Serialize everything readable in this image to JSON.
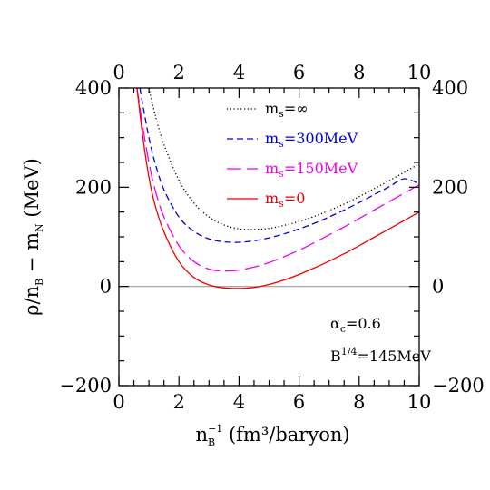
{
  "chart_data": {
    "type": "line",
    "xlabel": "n_B^-1 (fm³/baryon)",
    "ylabel": "ρ/n_B − m_N (MeV)",
    "xlim": [
      0,
      10
    ],
    "ylim": [
      -200,
      400
    ],
    "x_ticks": [
      0,
      2,
      4,
      6,
      8,
      10
    ],
    "y_ticks": [
      -200,
      0,
      200,
      400
    ],
    "x_tick_labels": [
      "0",
      "2",
      "4",
      "6",
      "8",
      "10"
    ],
    "y_tick_labels": [
      "−200",
      "0",
      "200",
      "400"
    ],
    "mirror_axes": "top-and-right",
    "grid": false,
    "legend_placement": "top-center",
    "reference_line": {
      "y": 0,
      "color": "#999999"
    },
    "series": [
      {
        "name": "m_s=∞",
        "name_parts": {
          "base": "m",
          "sub": "s",
          "rest": "=∞"
        },
        "color": "#000000",
        "dash": "dotted",
        "x": [
          1.0,
          1.2,
          1.5,
          2.0,
          2.5,
          3.0,
          3.5,
          4.0,
          4.5,
          5.0,
          5.5,
          6.0,
          6.5,
          7.0,
          7.5,
          8.0,
          8.5,
          9.0,
          9.5,
          10.0
        ],
        "y": [
          400,
          348,
          286,
          214,
          168,
          140,
          124,
          116,
          115,
          117,
          123,
          131,
          141,
          153,
          166,
          181,
          197,
          213,
          230,
          247
        ]
      },
      {
        "name": "m_s=300MeV",
        "name_parts": {
          "base": "m",
          "sub": "s",
          "rest": "=300MeV"
        },
        "color": "#0000dd",
        "dash": "dashed",
        "x": [
          0.7,
          0.8,
          1.0,
          1.2,
          1.5,
          2.0,
          2.5,
          3.0,
          3.5,
          4.0,
          4.5,
          5.0,
          5.5,
          6.0,
          6.5,
          7.0,
          7.5,
          8.0,
          8.5,
          9.0,
          9.5,
          10.0
        ],
        "y": [
          400,
          365,
          300,
          250,
          195,
          140,
          111,
          96,
          90,
          89,
          92,
          98,
          106,
          116,
          127,
          140,
          154,
          169,
          185,
          201,
          217,
          207
        ]
      },
      {
        "name": "m_s=150MeV",
        "name_parts": {
          "base": "m",
          "sub": "s",
          "rest": "=150MeV"
        },
        "color": "#ee00ee",
        "dash": "longdash",
        "x": [
          0.6,
          0.8,
          1.0,
          1.2,
          1.5,
          2.0,
          2.5,
          3.0,
          3.5,
          4.0,
          4.5,
          5.0,
          5.5,
          6.0,
          6.5,
          7.0,
          7.5,
          8.0,
          8.5,
          9.0,
          9.5,
          10.0
        ],
        "y": [
          400,
          320,
          250,
          196,
          140,
          82,
          50,
          35,
          31,
          33,
          39,
          48,
          60,
          73,
          88,
          104,
          120,
          137,
          154,
          171,
          188,
          205
        ]
      },
      {
        "name": "m_s=0",
        "name_parts": {
          "base": "m",
          "sub": "s",
          "rest": "=0"
        },
        "color": "#ee0000",
        "dash": "solid",
        "x": [
          0.6,
          0.8,
          1.0,
          1.2,
          1.5,
          2.0,
          2.5,
          3.0,
          3.5,
          4.0,
          4.5,
          5.0,
          5.5,
          6.0,
          6.5,
          7.0,
          7.5,
          8.0,
          8.5,
          9.0,
          9.5,
          10.0
        ],
        "y": [
          400,
          300,
          220,
          165,
          110,
          50,
          18,
          3,
          -3,
          -4,
          -2,
          4,
          13,
          24,
          37,
          51,
          66,
          82,
          99,
          116,
          133,
          150
        ]
      }
    ],
    "annotations": [
      {
        "id": "alpha",
        "base": "α",
        "sub": "c",
        "rest": "=0.6"
      },
      {
        "id": "bag",
        "base": "B",
        "sup": "1/4",
        "rest": "=145MeV"
      }
    ]
  }
}
